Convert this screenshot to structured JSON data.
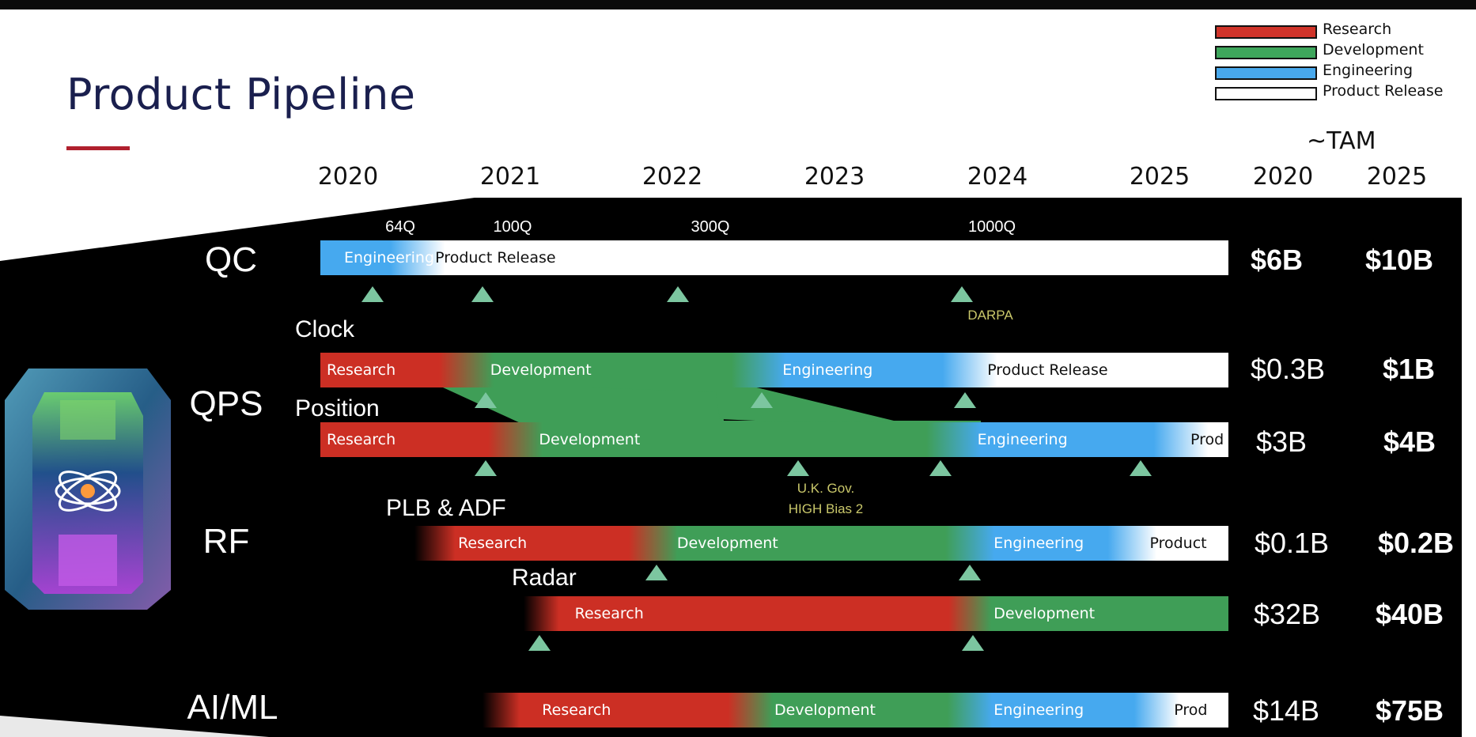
{
  "title": "Product Pipeline",
  "legend": [
    {
      "label": "Research",
      "color": "#d0342a"
    },
    {
      "label": "Development",
      "color": "#3ea65c"
    },
    {
      "label": "Engineering",
      "color": "#48a8ec"
    },
    {
      "label": "Product Release",
      "color": "#ffffff"
    }
  ],
  "tam": {
    "title": "~TAM",
    "years": [
      "2020",
      "2025"
    ]
  },
  "timeline_years": [
    "2020",
    "2021",
    "2022",
    "2023",
    "2024",
    "2025"
  ],
  "categories": {
    "qc": "QC",
    "qps": "QPS",
    "rf": "RF",
    "aiml": "AI/ML"
  },
  "rows": [
    {
      "id": "qc",
      "sublabel": "",
      "stages": [
        {
          "stage": "Engineering",
          "start": 2020.0,
          "end": 2020.6,
          "label": "Engineering"
        },
        {
          "stage": "Product Release",
          "start": 2020.6,
          "end": 2025.6,
          "label": "Product Release"
        }
      ],
      "milestones": [
        {
          "year": 2020.32,
          "label": "64Q"
        },
        {
          "year": 2021.0,
          "label": "100Q"
        },
        {
          "year": 2022.2,
          "label": "300Q"
        },
        {
          "year": 2023.95,
          "label": "1000Q"
        }
      ],
      "note": "DARPA",
      "tam_2020": "$6B",
      "tam_2025": "$10B"
    },
    {
      "id": "qps_clock",
      "sublabel": "Clock",
      "stages": [
        {
          "stage": "Research",
          "start": 2020.0,
          "end": 2020.9,
          "label": "Research"
        },
        {
          "stage": "Development",
          "start": 2020.9,
          "end": 2022.7,
          "label": "Development"
        },
        {
          "stage": "Engineering",
          "start": 2022.7,
          "end": 2024.0,
          "label": "Engineering"
        },
        {
          "stage": "Product Release",
          "start": 2024.0,
          "end": 2025.6,
          "label": "Product Release"
        }
      ],
      "milestones": [
        {
          "year": 2021.02
        },
        {
          "year": 2022.72
        },
        {
          "year": 2023.97
        }
      ],
      "tam_2020": "$0.3B",
      "tam_2025": "$1B"
    },
    {
      "id": "qps_position",
      "sublabel": "Position",
      "stages": [
        {
          "stage": "Research",
          "start": 2020.0,
          "end": 2021.2,
          "label": "Research"
        },
        {
          "stage": "Development",
          "start": 2021.2,
          "end": 2023.9,
          "label": "Development"
        },
        {
          "stage": "Engineering",
          "start": 2023.9,
          "end": 2025.3,
          "label": "Engineering"
        },
        {
          "stage": "Product Release",
          "start": 2025.3,
          "end": 2025.6,
          "label": "Prod"
        }
      ],
      "milestones": [
        {
          "year": 2021.02
        },
        {
          "year": 2022.94
        },
        {
          "year": 2023.82
        },
        {
          "year": 2025.05
        }
      ],
      "note_lines": [
        "U.K. Gov.",
        "HIGH Bias 2"
      ],
      "tam_2020": "$3B",
      "tam_2025": "$4B"
    },
    {
      "id": "rf_plb",
      "sublabel": "PLB & ADF",
      "stages": [
        {
          "stage": "Research",
          "start": 2020.58,
          "end": 2022.05,
          "label": "Research"
        },
        {
          "stage": "Development",
          "start": 2022.05,
          "end": 2024.0,
          "label": "Development"
        },
        {
          "stage": "Engineering",
          "start": 2024.0,
          "end": 2025.0,
          "label": "Engineering"
        },
        {
          "stage": "Product Release",
          "start": 2025.0,
          "end": 2025.6,
          "label": "Product"
        }
      ],
      "milestones": [
        {
          "year": 2022.07
        },
        {
          "year": 2024.0
        }
      ],
      "tam_2020": "$0.1B",
      "tam_2025": "$0.2B"
    },
    {
      "id": "rf_radar",
      "sublabel": "Radar",
      "stages": [
        {
          "stage": "Research",
          "start": 2021.25,
          "end": 2024.0,
          "label": "Research"
        },
        {
          "stage": "Development",
          "start": 2024.0,
          "end": 2025.6,
          "label": "Development"
        }
      ],
      "milestones": [
        {
          "year": 2021.35
        },
        {
          "year": 2024.02
        }
      ],
      "tam_2020": "$32B",
      "tam_2025": "$40B"
    },
    {
      "id": "aiml",
      "sublabel": "",
      "stages": [
        {
          "stage": "Research",
          "start": 2021.0,
          "end": 2022.65,
          "label": "Research"
        },
        {
          "stage": "Development",
          "start": 2022.65,
          "end": 2024.0,
          "label": "Development"
        },
        {
          "stage": "Engineering",
          "start": 2024.0,
          "end": 2025.15,
          "label": "Engineering"
        },
        {
          "stage": "Product Release",
          "start": 2025.15,
          "end": 2025.6,
          "label": "Prod"
        }
      ],
      "milestones": [],
      "tam_2020": "$14B",
      "tam_2025": "$75B"
    }
  ],
  "colors": {
    "Research": "#cc2f24",
    "Development": "#3f9e57",
    "Engineering": "#46a9ef",
    "Product Release": "#ffffff",
    "milestone": "#7cc6a0",
    "note": "#c9c76a",
    "title": "#1a1f4e",
    "accent_line": "#b0202e"
  }
}
